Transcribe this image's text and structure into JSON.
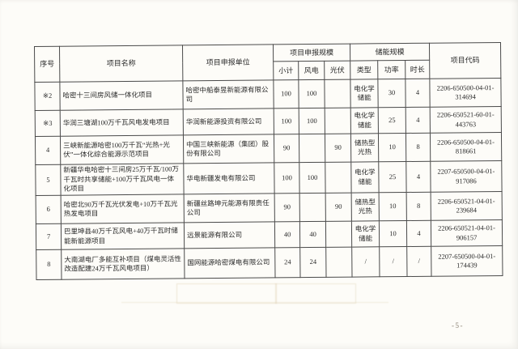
{
  "page": {
    "number_label": "-5-"
  },
  "colors": {
    "paper": "#fdfcf8",
    "table_border": "#4a4a4a",
    "text": "#2a2a2a",
    "page_number_text": "#8a8173",
    "bleed_through": "#e4d6ba"
  },
  "table": {
    "headers": {
      "index": "序号",
      "name": "项目名称",
      "applicant": "项目申报单位",
      "scale_group": "项目申报规模",
      "subtotal": "小计",
      "wind": "风电",
      "pv": "光伏",
      "storage_group": "储能规模",
      "type": "类型",
      "power": "功率",
      "duration": "时长",
      "code": "项目代码"
    },
    "rows": [
      {
        "index": "※2",
        "name": "哈密十三间房风储一体化项目",
        "applicant": "哈密中船泰昱新能源有限公司",
        "subtotal": "100",
        "wind": "100",
        "pv": "",
        "type": "电化学储能",
        "power": "30",
        "duration": "4",
        "code": "2206-650500-04-01-314694"
      },
      {
        "index": "※3",
        "name": "华润三塘湖100万千瓦风电发电项目",
        "applicant": "华润新能源投资有限公司",
        "subtotal": "100",
        "wind": "100",
        "pv": "",
        "type": "电化学储能",
        "power": "25",
        "duration": "4",
        "code": "2206-650521-60-01-443763"
      },
      {
        "index": "4",
        "name": "三峡新能源哈密100万千瓦“光热+光伏”一体化综合能源示范项目",
        "applicant": "中国三峡新能源（集团）股份有限公司",
        "subtotal": "90",
        "wind": "",
        "pv": "90",
        "type": "储热型光热",
        "power": "10",
        "duration": "8",
        "code": "2206-650500-04-01-818661"
      },
      {
        "index": "5",
        "name": "新疆华电哈密十三间房25万千瓦/100万千瓦时共享储能+100万千瓦风电一体化项目",
        "applicant": "华电新疆发电有限公司",
        "subtotal": "100",
        "wind": "100",
        "pv": "",
        "type": "电化学储能",
        "power": "25",
        "duration": "4",
        "code": "2207-650500-04-01-917086"
      },
      {
        "index": "6",
        "name": "哈密北90万千瓦光伏发电+10万千瓦光热发电项目",
        "applicant": "新疆丝路坤元能源有限责任公司",
        "subtotal": "90",
        "wind": "",
        "pv": "90",
        "type": "储热型光热",
        "power": "10",
        "duration": "8",
        "code": "2206-650521-04-01-239684"
      },
      {
        "index": "7",
        "name": "巴里坤县40万千瓦风电+40万千瓦时储能新能源项目",
        "applicant": "远景能源有限公司",
        "subtotal": "40",
        "wind": "40",
        "pv": "",
        "type": "电化学储能",
        "power": "10",
        "duration": "4",
        "code": "2206-650521-04-01-906157"
      },
      {
        "index": "8",
        "name": "大南湖电厂多能互补项目（煤电灵活性改造配建24万千瓦风电项目）",
        "applicant": "国网能源哈密煤电有限公司",
        "subtotal": "24",
        "wind": "24",
        "pv": "",
        "type": "/",
        "power": "/",
        "duration": "/",
        "code": "2207-650500-04-01-174439"
      }
    ]
  }
}
